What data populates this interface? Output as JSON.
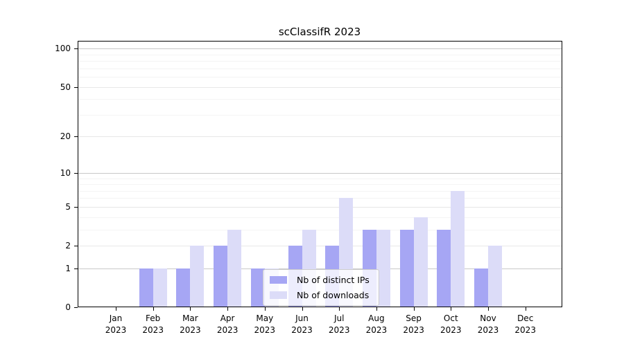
{
  "chart_data": {
    "type": "bar",
    "title": "scClassifR 2023",
    "categories": [
      "Jan",
      "Feb",
      "Mar",
      "Apr",
      "May",
      "Jun",
      "Jul",
      "Aug",
      "Sep",
      "Oct",
      "Nov",
      "Dec"
    ],
    "x_year_label": "2023",
    "series": [
      {
        "name": "Nb of distinct IPs",
        "color": "#a6a6f4",
        "values": [
          0,
          1,
          1,
          2,
          1,
          2,
          2,
          3,
          3,
          3,
          1,
          0
        ]
      },
      {
        "name": "Nb of downloads",
        "color": "#dcdcf8",
        "values": [
          0,
          1,
          2,
          3,
          1,
          3,
          6,
          3,
          4,
          7,
          2,
          0
        ]
      }
    ],
    "yscale": "log10(1+x)",
    "ylim": [
      0,
      115
    ],
    "yticks": [
      0,
      1,
      2,
      5,
      10,
      20,
      50,
      100
    ],
    "yticks_minor": [
      3,
      4,
      6,
      7,
      8,
      9,
      30,
      40,
      60,
      70,
      80,
      90
    ],
    "grid": "horizontal",
    "legend_position": "lower center-left, inside plot",
    "colors": {
      "decade_gridline": "#c8c8c8",
      "mid_gridline": "#e7e7e7",
      "minor_gridline": "#f4f4f4",
      "axis": "#000000",
      "legend_border": "#cccccc"
    }
  }
}
